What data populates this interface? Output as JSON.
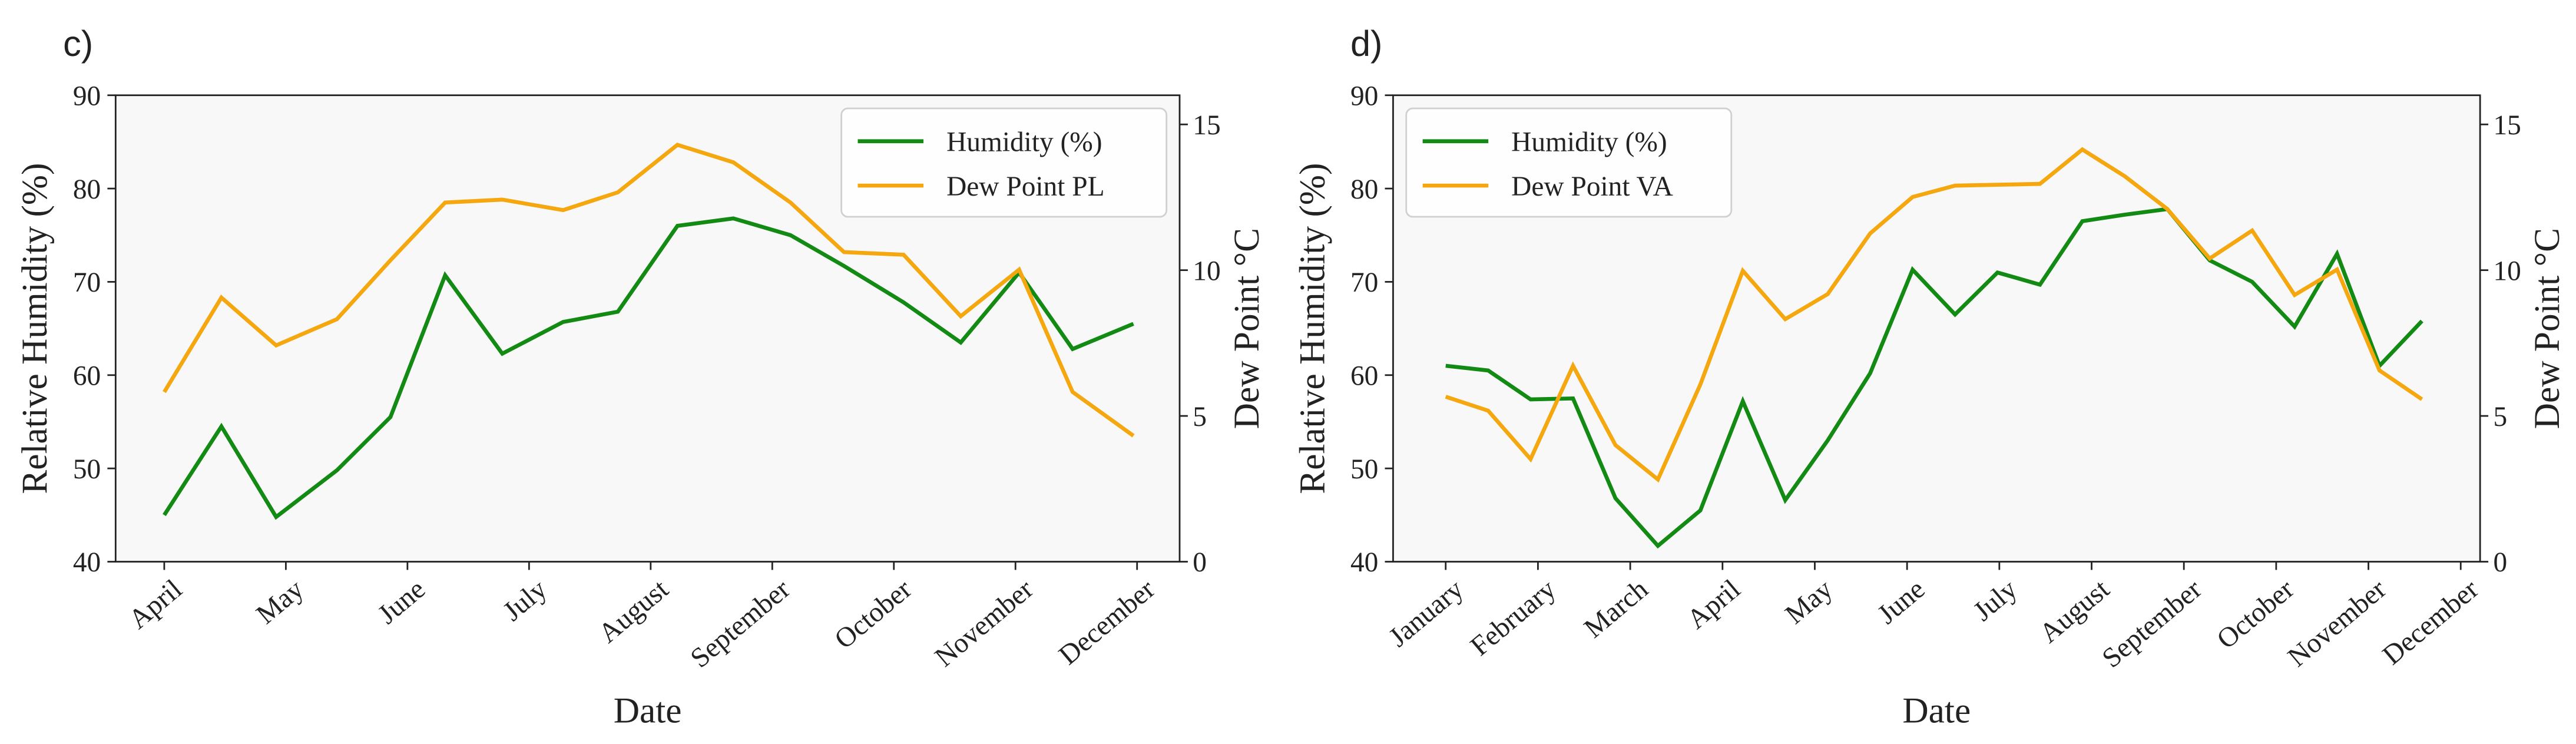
{
  "chart_data": [
    {
      "type": "line",
      "label": "c)",
      "xlabel": "Date",
      "ylabel": "Relative Humidity (%)",
      "y2label": "Dew Point °C",
      "x": [
        0,
        0.47,
        0.92,
        1.42,
        1.86,
        2.31,
        2.78,
        3.28,
        3.73,
        4.22,
        4.68,
        5.15,
        5.59,
        6.08,
        6.55,
        7.03,
        7.47,
        7.97
      ],
      "xlim": [
        -0.4,
        8.35
      ],
      "xticks": [
        {
          "value": 0,
          "label": "April"
        },
        {
          "value": 1,
          "label": "May"
        },
        {
          "value": 2,
          "label": "June"
        },
        {
          "value": 3,
          "label": "July"
        },
        {
          "value": 4,
          "label": "August"
        },
        {
          "value": 5,
          "label": "September"
        },
        {
          "value": 6,
          "label": "October"
        },
        {
          "value": 7,
          "label": "November"
        },
        {
          "value": 8,
          "label": "December"
        }
      ],
      "ylim": [
        40,
        90
      ],
      "yticks": [
        40,
        50,
        60,
        70,
        80,
        90
      ],
      "y2lim": [
        0,
        16
      ],
      "y2ticks": [
        0,
        5,
        10,
        15
      ],
      "legend": "upper right",
      "series": [
        {
          "name": "Humidity (%)",
          "color": "#138a13",
          "values": [
            45,
            54.5,
            44.8,
            49.8,
            55.5,
            70.7,
            62.3,
            65.7,
            66.8,
            76,
            76.8,
            75,
            71.7,
            67.8,
            63.5,
            71,
            62.8,
            65.5
          ]
        },
        {
          "name": "Dew Point PL",
          "color": "#f5a70f",
          "axis": "y2",
          "values": [
            5.82,
            9.06,
            7.42,
            8.32,
            10.34,
            12.32,
            12.42,
            12.06,
            12.67,
            14.3,
            13.7,
            12.32,
            10.62,
            10.53,
            8.42,
            10.02,
            5.82,
            4.32
          ]
        }
      ]
    },
    {
      "type": "line",
      "label": "d)",
      "xlabel": "Date",
      "ylabel": "Relative Humidity (%)",
      "y2label": "Dew Point °C",
      "x": [
        0,
        0.46,
        0.92,
        1.38,
        1.84,
        2.3,
        2.76,
        3.22,
        3.68,
        4.14,
        4.6,
        5.06,
        5.52,
        5.98,
        6.44,
        6.9,
        7.36,
        7.82,
        8.28,
        8.74,
        9.2,
        9.66,
        10.12,
        10.58
      ],
      "xlim": [
        -0.57,
        11.21
      ],
      "xticks": [
        {
          "value": 0,
          "label": "January"
        },
        {
          "value": 1,
          "label": "February"
        },
        {
          "value": 2,
          "label": "March"
        },
        {
          "value": 3,
          "label": "April"
        },
        {
          "value": 4,
          "label": "May"
        },
        {
          "value": 5,
          "label": "June"
        },
        {
          "value": 6,
          "label": "July"
        },
        {
          "value": 7,
          "label": "August"
        },
        {
          "value": 8,
          "label": "September"
        },
        {
          "value": 9,
          "label": "October"
        },
        {
          "value": 10,
          "label": "November"
        },
        {
          "value": 11,
          "label": "December"
        }
      ],
      "ylim": [
        40,
        90
      ],
      "yticks": [
        40,
        50,
        60,
        70,
        80,
        90
      ],
      "y2lim": [
        0,
        16
      ],
      "y2ticks": [
        0,
        5,
        10,
        15
      ],
      "legend": "upper left",
      "series": [
        {
          "name": "Humidity (%)",
          "color": "#138a13",
          "values": [
            61,
            60.5,
            57.4,
            57.5,
            46.8,
            41.7,
            45.5,
            57.2,
            46.6,
            53,
            60.2,
            71.3,
            66.5,
            71,
            69.7,
            76.5,
            77.2,
            77.8,
            72.3,
            70,
            65.2,
            73,
            61,
            65.8
          ]
        },
        {
          "name": "Dew Point VA",
          "color": "#f5a70f",
          "axis": "y2",
          "values": [
            5.66,
            5.18,
            3.52,
            6.72,
            4,
            2.82,
            6.08,
            9.98,
            8.32,
            9.18,
            11.26,
            12.51,
            12.9,
            12.93,
            12.96,
            14.14,
            13.22,
            12.1,
            10.4,
            11.36,
            9.15,
            10.02,
            6.56,
            5.57
          ]
        }
      ]
    }
  ]
}
